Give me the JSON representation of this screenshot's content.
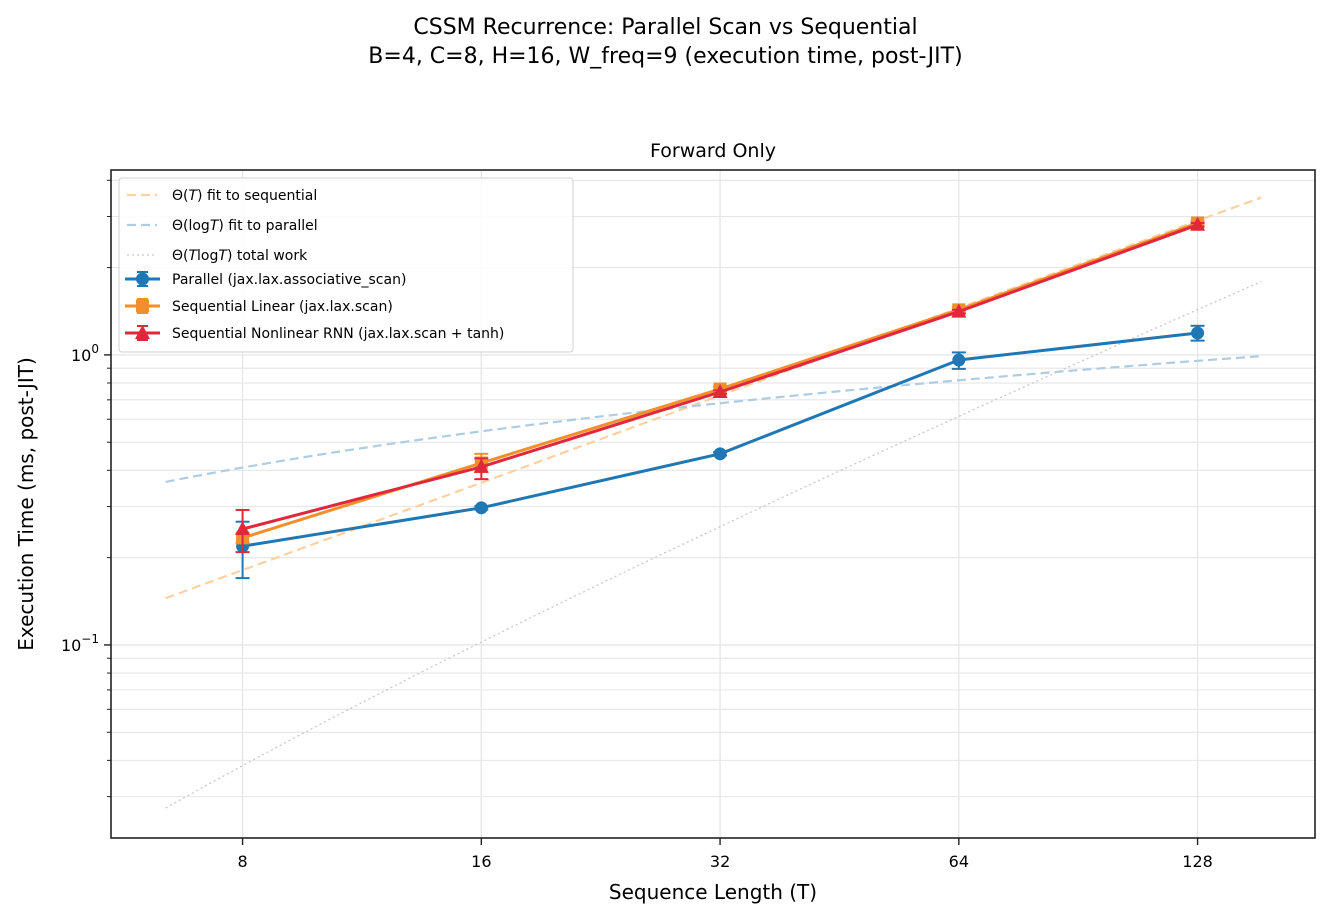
{
  "figure": {
    "suptitle_line1": "CSSM Recurrence: Parallel Scan vs Sequential",
    "suptitle_line2": "B=4, C=8, H=16, W_freq=9  (execution time, post-JIT)"
  },
  "chart_data": {
    "type": "line",
    "title": "Forward Only",
    "xlabel": "Sequence Length (T)",
    "ylabel": "Execution Time (ms, post-JIT)",
    "xscale": "log2",
    "yscale": "log10",
    "xlim": [
      5.46,
      180
    ],
    "ylim": [
      0.0216,
      4.34
    ],
    "x_ticks": [
      8,
      16,
      32,
      64,
      128
    ],
    "x_tick_labels": [
      "8",
      "16",
      "32",
      "64",
      "128"
    ],
    "y_major_ticks": [
      0.1,
      1
    ],
    "y_tick_labels": [
      {
        "base": "10",
        "exp": "−1"
      },
      {
        "base": "10",
        "exp": "0"
      }
    ],
    "grid": true,
    "legend_position": "top-left",
    "x": [
      8,
      16,
      32,
      64,
      128
    ],
    "series": [
      {
        "name": "Parallel (jax.lax.associative_scan)",
        "color": "#1f77b4",
        "marker": "circle",
        "values": [
          0.219,
          0.297,
          0.456,
          0.96,
          1.19
        ],
        "err_low": [
          0.17,
          0.293,
          0.45,
          0.895,
          1.12
        ],
        "err_high": [
          0.266,
          0.301,
          0.462,
          1.02,
          1.26
        ]
      },
      {
        "name": "Sequential Linear (jax.lax.scan)",
        "color": "#f28e2b",
        "marker": "square",
        "values": [
          0.234,
          0.424,
          0.763,
          1.43,
          2.85
        ],
        "err_low": [
          0.225,
          0.395,
          0.75,
          1.4,
          2.8
        ],
        "err_high": [
          0.243,
          0.456,
          0.776,
          1.46,
          2.9
        ]
      },
      {
        "name": "Sequential Nonlinear RNN (jax.lax.scan + tanh)",
        "color": "#e0283c",
        "marker": "triangle",
        "values": [
          0.251,
          0.411,
          0.745,
          1.41,
          2.81
        ],
        "err_low": [
          0.209,
          0.373,
          0.735,
          1.39,
          2.77
        ],
        "err_high": [
          0.292,
          0.44,
          0.755,
          1.43,
          2.85
        ]
      }
    ],
    "reference_lines": [
      {
        "name": "Θ(T) fit to sequential",
        "label_parts": [
          "Θ(",
          "T",
          ") fit to sequential"
        ],
        "color": "#fdd0a2",
        "style": "dashed",
        "model": "linear",
        "x_range": [
          6.4,
          154
        ],
        "y_start": 0.145
      },
      {
        "name": "Θ(log T) fit to parallel",
        "label_parts": [
          "Θ(log",
          "T",
          ") fit to parallel"
        ],
        "color": "#aecde3",
        "style": "dashed",
        "model": "log",
        "x_range": [
          6.4,
          154
        ],
        "y_start": 0.365
      },
      {
        "name": "Θ(T log T) total work",
        "label_parts": [
          "Θ(",
          "T",
          "log",
          "T",
          ") total work"
        ],
        "color": "#c8c8c8",
        "style": "dotted",
        "model": "nlogn",
        "x_range": [
          6.4,
          154
        ],
        "y_start": 0.0274
      }
    ]
  }
}
